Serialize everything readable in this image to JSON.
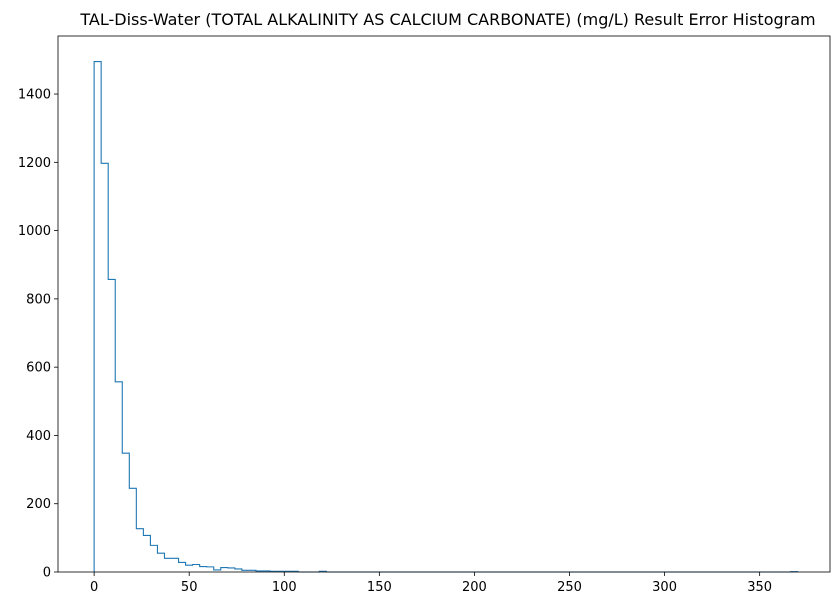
{
  "chart_data": {
    "type": "histogram",
    "title": "TAL-Diss-Water (TOTAL ALKALINITY AS CALCIUM CARBONATE) (mg/L) Result Error Histogram",
    "xlabel": "",
    "ylabel": "",
    "xlim": [
      -19,
      387
    ],
    "ylim": [
      0,
      1570
    ],
    "xticks": [
      0,
      50,
      100,
      150,
      200,
      250,
      300,
      350
    ],
    "yticks": [
      0,
      200,
      400,
      600,
      800,
      1000,
      1200,
      1400
    ],
    "grid": false,
    "histtype": "step",
    "color": "#1f77b4",
    "bin_width": 3.7,
    "bin_start": 0,
    "counts": [
      1495,
      1197,
      857,
      557,
      348,
      245,
      127,
      107,
      78,
      55,
      40,
      40,
      28,
      20,
      22,
      16,
      15,
      6,
      13,
      12,
      9,
      5,
      5,
      3,
      3,
      2,
      2,
      2,
      2,
      0,
      0,
      0,
      2,
      0,
      0,
      0,
      0,
      0,
      0,
      0,
      0,
      0,
      0,
      0,
      0,
      0,
      0,
      0,
      0,
      0,
      0,
      0,
      0,
      0,
      0,
      0,
      0,
      0,
      0,
      0,
      0,
      0,
      0,
      0,
      0,
      0,
      0,
      0,
      0,
      0,
      0,
      0,
      0,
      0,
      0,
      0,
      0,
      0,
      0,
      0,
      0,
      0,
      0,
      0,
      0,
      0,
      0,
      0,
      0,
      0,
      0,
      0,
      0,
      0,
      0,
      0,
      0,
      0,
      0,
      1
    ]
  }
}
